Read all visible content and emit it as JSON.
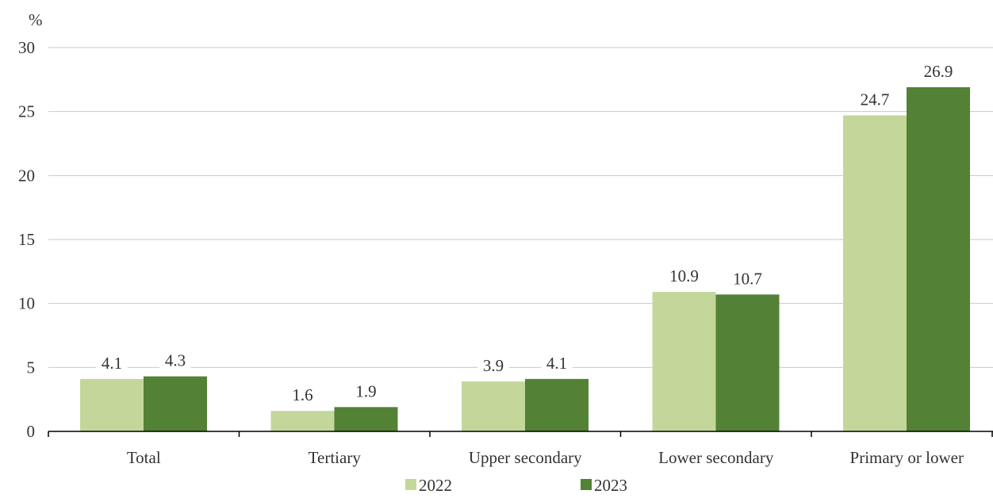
{
  "chart_data": {
    "type": "bar",
    "ylabel": "%",
    "ylim": [
      0,
      30
    ],
    "yticks": [
      "0",
      "5",
      "10",
      "15",
      "20",
      "25",
      "30"
    ],
    "categories": [
      "Total",
      "Tertiary",
      "Upper secondary",
      "Lower secondary",
      "Primary or lower"
    ],
    "series": [
      {
        "name": "2022",
        "color": "#c4d79b",
        "values": [
          4.1,
          1.6,
          3.9,
          10.9,
          24.7
        ],
        "labels": [
          "4.1",
          "1.6",
          "3.9",
          "10.9",
          "24.7"
        ]
      },
      {
        "name": "2023",
        "color": "#538135",
        "values": [
          4.3,
          1.9,
          4.1,
          10.7,
          26.9
        ],
        "labels": [
          "4.3",
          "1.9",
          "4.1",
          "10.7",
          "26.9"
        ]
      }
    ],
    "grid": true,
    "legend": "bottom-center"
  }
}
